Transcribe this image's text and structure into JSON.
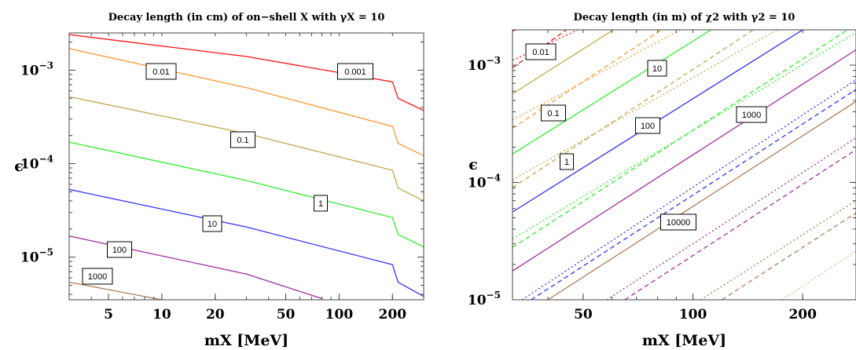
{
  "chart_data": [
    {
      "type": "line",
      "title": "Decay length (in cm) of on−shell X with γX = 10",
      "xlabel": "mX [MeV]",
      "ylabel": "ϵ",
      "xscale": "log",
      "yscale": "log",
      "xlim": [
        3,
        300
      ],
      "ylim": [
        3.5e-06,
        0.0025
      ],
      "x_ticks": [
        5,
        10,
        20,
        50,
        100,
        200
      ],
      "x_tick_labels": [
        "5",
        "10",
        "20",
        "50",
        "100",
        "200"
      ],
      "y_ticks": [
        1e-05,
        0.0001,
        0.001
      ],
      "y_tick_labels": [
        "10",
        "10",
        "10"
      ],
      "y_tick_exponents": [
        "−5",
        "−4",
        "−3"
      ],
      "series": [
        {
          "name": "0.001",
          "color": "#ff1010",
          "style": "solid",
          "x": [
            3,
            30,
            200,
            215,
            300
          ],
          "y": [
            0.0024,
            0.0014,
            0.00075,
            0.0005,
            0.00037
          ]
        },
        {
          "name": "0.01",
          "color": "#ff9932",
          "style": "solid",
          "x": [
            3,
            30,
            200,
            215,
            300
          ],
          "y": [
            0.0017,
            0.00065,
            0.00025,
            0.000165,
            0.000122
          ]
        },
        {
          "name": "0.1",
          "color": "#c0a84a",
          "style": "solid",
          "x": [
            3,
            30,
            200,
            215,
            300
          ],
          "y": [
            0.00052,
            0.00021,
            8.5e-05,
            5.5e-05,
            4e-05
          ]
        },
        {
          "name": "1",
          "color": "#32ee32",
          "style": "solid",
          "x": [
            3,
            30,
            200,
            215,
            300
          ],
          "y": [
            0.00017,
            6.6e-05,
            2.65e-05,
            1.75e-05,
            1.28e-05
          ]
        },
        {
          "name": "10",
          "color": "#3232ff",
          "style": "solid",
          "x": [
            3,
            30,
            200,
            215,
            300
          ],
          "y": [
            5.3e-05,
            2.1e-05,
            8.3e-06,
            5.4e-06,
            3.8e-06
          ]
        },
        {
          "name": "100",
          "color": "#a030a0",
          "style": "solid",
          "x": [
            3,
            30,
            80
          ],
          "y": [
            1.68e-05,
            6.6e-06,
            3.6e-06
          ]
        },
        {
          "name": "1000",
          "color": "#b07e58",
          "style": "solid",
          "x": [
            3,
            10
          ],
          "y": [
            5.4e-06,
            3.5e-06
          ]
        }
      ],
      "contour_labels": [
        "0.001",
        "0.01",
        "0.1",
        "1",
        "10",
        "100",
        "1000"
      ]
    },
    {
      "type": "line",
      "title": "Decay length (in m) of χ2 with γ2 = 10",
      "xlabel": "mX [MeV]",
      "ylabel": "ϵ",
      "xscale": "log",
      "yscale": "log",
      "xlim": [
        32,
        280
      ],
      "ylim": [
        1e-05,
        0.002
      ],
      "x_ticks": [
        50,
        100,
        200
      ],
      "x_tick_labels": [
        "50",
        "100",
        "200"
      ],
      "y_ticks": [
        1e-05,
        0.0001,
        0.001
      ],
      "y_tick_labels": [
        "10",
        "10",
        "10"
      ],
      "y_tick_exponents": [
        "−5",
        "−4",
        "−3"
      ],
      "series": [
        {
          "name": "0.01",
          "color": "#ff1010",
          "style": "solid",
          "x": [
            32,
            34
          ],
          "y": [
            0.00195,
            0.0021
          ]
        },
        {
          "name": "0.1",
          "color": "#c0a84a",
          "style": "solid",
          "x": [
            32,
            62
          ],
          "y": [
            0.00057,
            0.0021
          ]
        },
        {
          "name": "1",
          "color": "#32ee32",
          "style": "solid",
          "x": [
            32,
            115
          ],
          "y": [
            0.000175,
            0.0021
          ]
        },
        {
          "name": "10",
          "color": "#3232ff",
          "style": "solid",
          "x": [
            32,
            205
          ],
          "y": [
            5.6e-05,
            0.0021
          ]
        },
        {
          "name": "100",
          "color": "#a030a0",
          "style": "solid",
          "x": [
            32,
            280
          ],
          "y": [
            1.76e-05,
            0.00135
          ]
        },
        {
          "name": "1000",
          "color": "#b07e58",
          "style": "solid",
          "x": [
            40,
            280
          ],
          "y": [
            1e-05,
            0.00049
          ]
        },
        {
          "name": "dashed-red",
          "color": "#ff1010",
          "style": "dashed",
          "x": [
            32,
            46
          ],
          "y": [
            0.00095,
            0.0021
          ]
        },
        {
          "name": "dashed-orange",
          "color": "#ff9932",
          "style": "dashed",
          "x": [
            32,
            84
          ],
          "y": [
            0.00029,
            0.0021
          ]
        },
        {
          "name": "dashed-olive",
          "color": "#c0a84a",
          "style": "dashed",
          "x": [
            32,
            150
          ],
          "y": [
            9.05e-05,
            0.0021
          ]
        },
        {
          "name": "dashed-green",
          "color": "#32ee32",
          "style": "dashed",
          "x": [
            32,
            272
          ],
          "y": [
            2.8e-05,
            0.0021
          ]
        },
        {
          "name": "dashed-blue",
          "color": "#3232ff",
          "style": "dashed",
          "x": [
            36,
            280
          ],
          "y": [
            1e-05,
            0.00062
          ]
        },
        {
          "name": "dashed-purple",
          "color": "#a030a0",
          "style": "dashed",
          "x": [
            65,
            280
          ],
          "y": [
            1e-05,
            0.00019
          ]
        },
        {
          "name": "dashed-brown",
          "color": "#b07e58",
          "style": "dashed",
          "x": [
            120,
            280
          ],
          "y": [
            1e-05,
            5.5e-05
          ]
        },
        {
          "name": "dotted-red",
          "color": "#ff1010",
          "style": "dotted",
          "x": [
            32,
            50
          ],
          "y": [
            0.0011,
            0.0021
          ]
        },
        {
          "name": "dotted-orange",
          "color": "#ff9932",
          "style": "dotted",
          "x": [
            32,
            95
          ],
          "y": [
            0.00034,
            0.0021
          ]
        },
        {
          "name": "dotted-olive",
          "color": "#c0a84a",
          "style": "dotted",
          "x": [
            32,
            175
          ],
          "y": [
            0.000105,
            0.0021
          ]
        },
        {
          "name": "dotted-green",
          "color": "#32ee32",
          "style": "dotted",
          "x": [
            32,
            280
          ],
          "y": [
            3.3e-05,
            0.0019
          ]
        },
        {
          "name": "dotted-blue",
          "color": "#3232ff",
          "style": "dotted",
          "x": [
            34,
            280
          ],
          "y": [
            1e-05,
            0.00075
          ]
        },
        {
          "name": "dotted-purple",
          "color": "#a030a0",
          "style": "dotted",
          "x": [
            58,
            280
          ],
          "y": [
            1e-05,
            0.00024
          ]
        },
        {
          "name": "dotted-brown",
          "color": "#b07e58",
          "style": "dotted",
          "x": [
            105,
            280
          ],
          "y": [
            1e-05,
            7e-05
          ]
        },
        {
          "name": "dotted-tan",
          "color": "#f0b080",
          "style": "dotted",
          "x": [
            175,
            280
          ],
          "y": [
            1e-05,
            2.6e-05
          ]
        }
      ],
      "contour_labels": [
        "0.01",
        "0.1",
        "1",
        "10",
        "100",
        "1000",
        "10000"
      ]
    }
  ]
}
